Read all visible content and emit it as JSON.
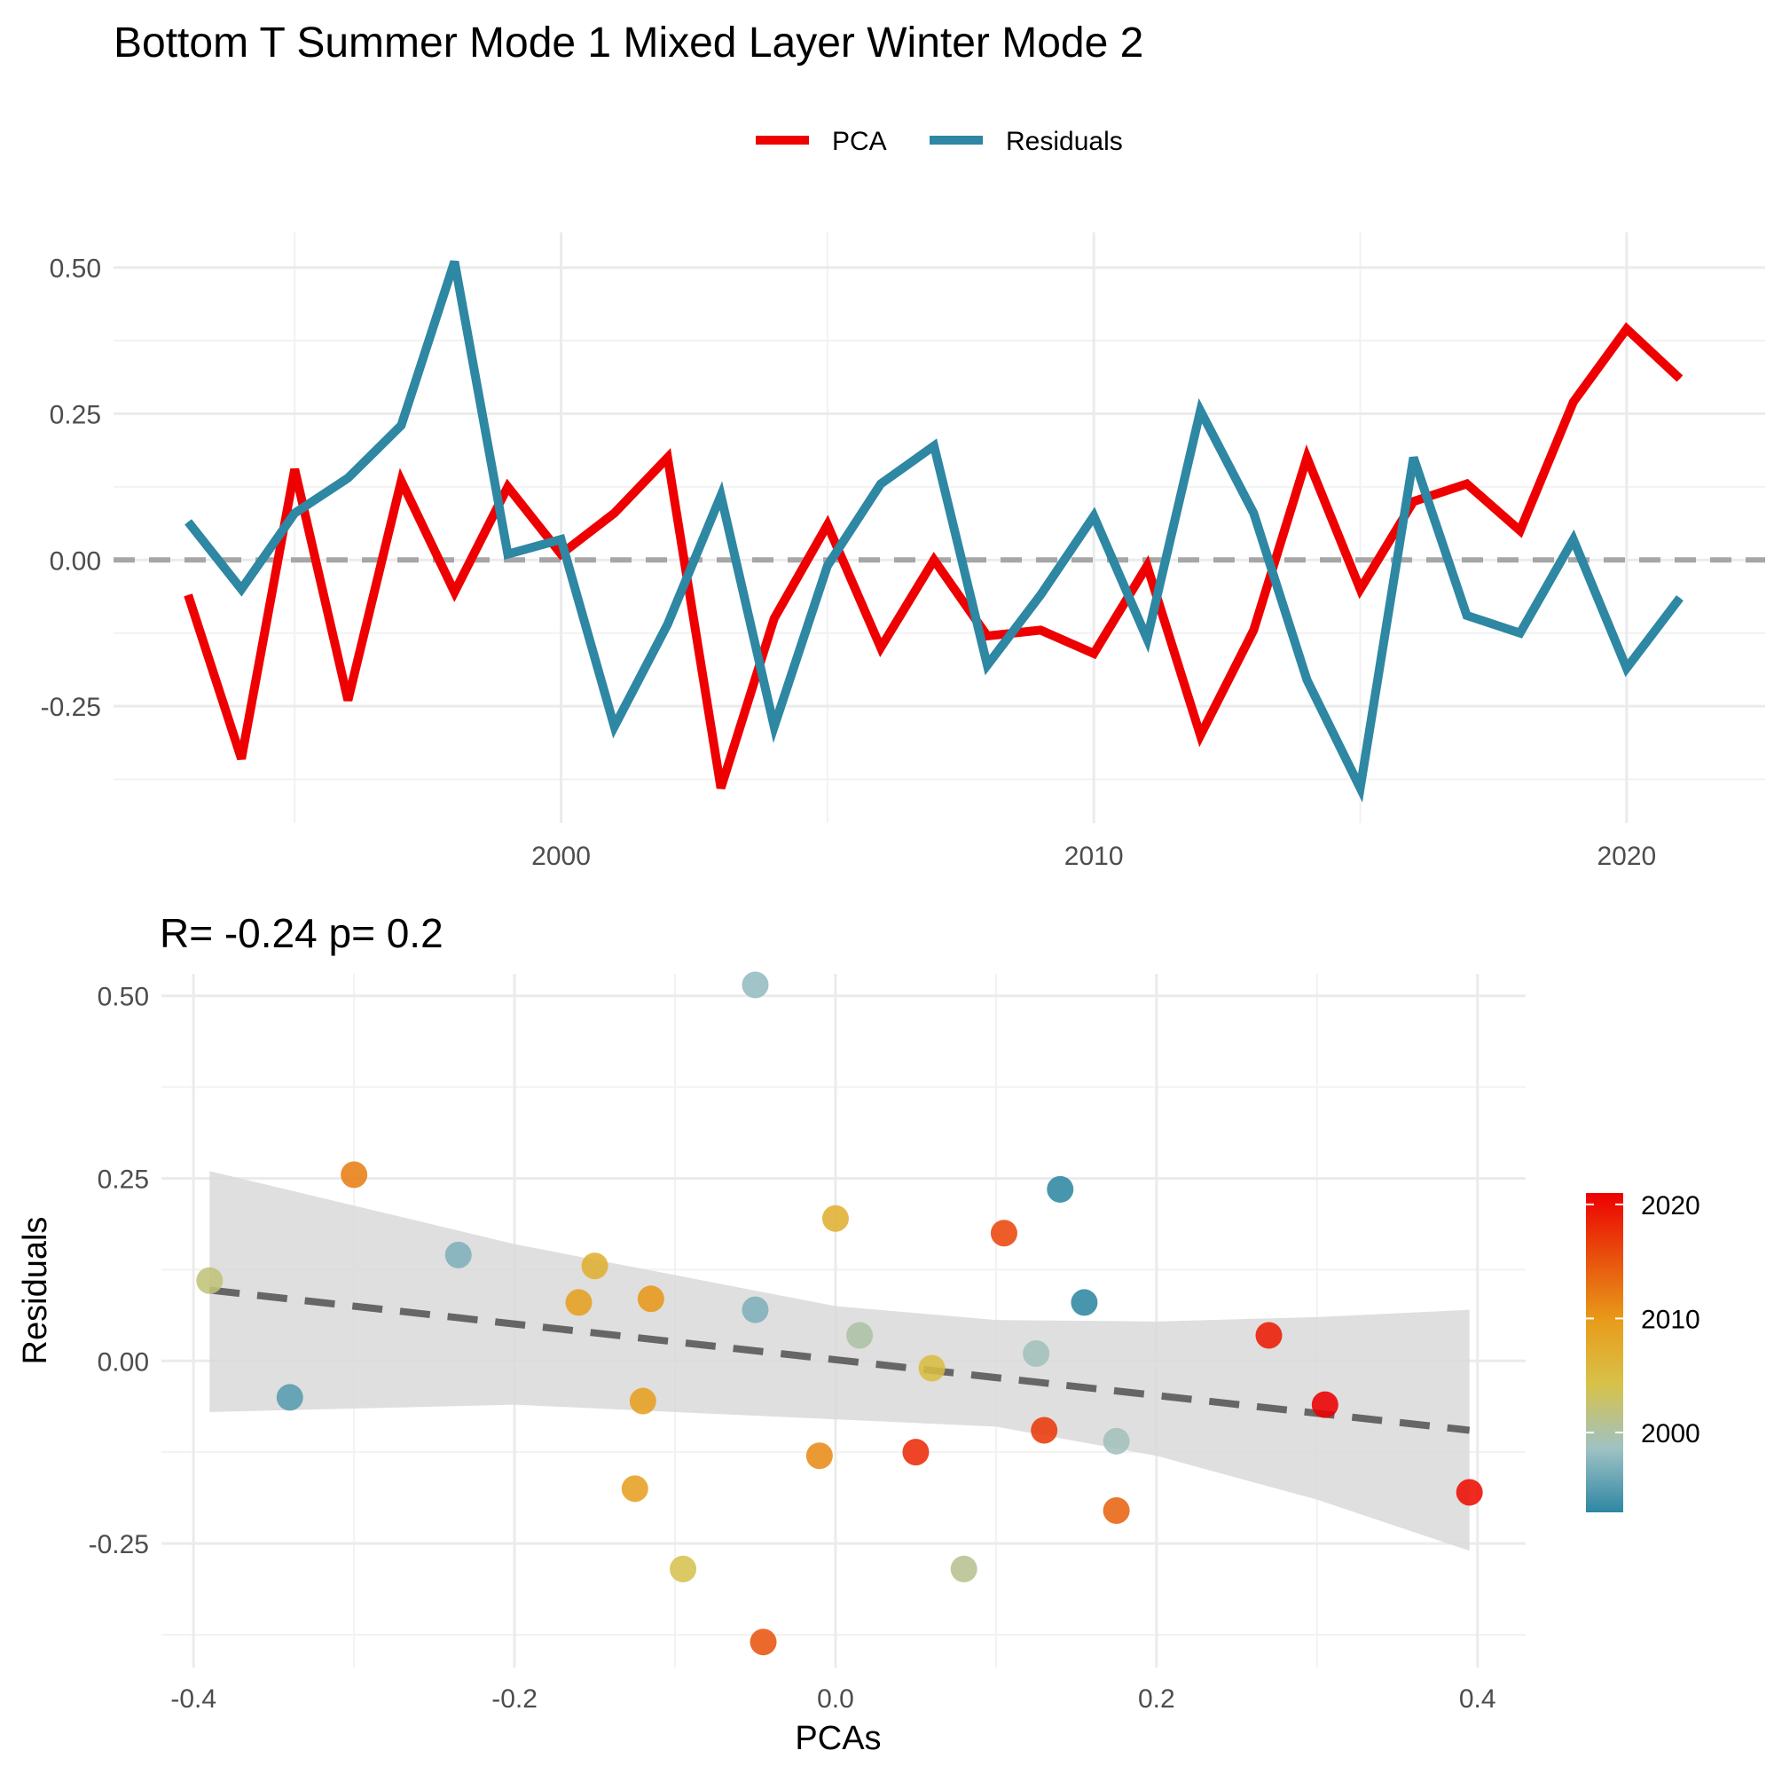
{
  "figure_title": "Bottom T Summer Mode 1 Mixed Layer Winter Mode 2",
  "colors": {
    "pca": "#ee0000",
    "residuals": "#2e87a3",
    "zero_line": "#a6a6a6",
    "fit_line": "#666666",
    "ribbon": "#d9d9d9",
    "gradient": [
      "#2e87a3",
      "#9fc2c4",
      "#d7c24a",
      "#e89c1a",
      "#e8500d",
      "#ee0000"
    ]
  },
  "chart_data": [
    {
      "type": "line",
      "title": "",
      "xlabel": "",
      "ylabel": "",
      "x": [
        1993,
        1994,
        1995,
        1996,
        1997,
        1998,
        1999,
        2000,
        2001,
        2002,
        2003,
        2004,
        2005,
        2006,
        2007,
        2008,
        2009,
        2010,
        2011,
        2012,
        2013,
        2014,
        2015,
        2016,
        2017,
        2018,
        2019,
        2020,
        2021
      ],
      "series": [
        {
          "name": "PCA",
          "values": [
            -0.06,
            -0.34,
            0.155,
            -0.24,
            0.135,
            -0.055,
            0.125,
            0.01,
            0.08,
            0.175,
            -0.39,
            -0.1,
            0.06,
            -0.15,
            0.0,
            -0.13,
            -0.12,
            -0.16,
            -0.01,
            -0.3,
            -0.12,
            0.175,
            -0.05,
            0.1,
            0.13,
            0.05,
            0.27,
            0.395,
            0.31
          ]
        },
        {
          "name": "Residuals",
          "values": [
            0.065,
            -0.05,
            0.08,
            0.14,
            0.23,
            0.51,
            0.01,
            0.035,
            -0.285,
            -0.11,
            0.11,
            -0.285,
            -0.01,
            0.13,
            0.195,
            -0.18,
            -0.06,
            0.075,
            -0.135,
            0.255,
            0.08,
            -0.205,
            -0.39,
            0.175,
            -0.095,
            -0.125,
            0.035,
            -0.185,
            -0.065
          ]
        }
      ],
      "xlim": [
        1991.6,
        2022.6
      ],
      "ylim": [
        -0.45,
        0.56
      ],
      "xticks": [
        "2000",
        "2010",
        "2020"
      ],
      "yticks": [
        "0.50",
        "0.25",
        "0.00",
        "-0.25"
      ],
      "reference_line": 0,
      "legend": {
        "position": "top",
        "entries": [
          "PCA",
          "Residuals"
        ]
      }
    },
    {
      "type": "scatter",
      "subtitle": "R= -0.24  p= 0.2",
      "xlabel": "PCAs",
      "ylabel": "Residuals",
      "points": [
        {
          "x": -0.39,
          "y": 0.11,
          "year": 2002
        },
        {
          "x": -0.34,
          "y": -0.05,
          "year": 1995
        },
        {
          "x": -0.3,
          "y": 0.255,
          "year": 2012
        },
        {
          "x": -0.235,
          "y": 0.145,
          "year": 1997
        },
        {
          "x": -0.15,
          "y": 0.13,
          "year": 2007
        },
        {
          "x": -0.16,
          "y": 0.08,
          "year": 2009
        },
        {
          "x": -0.115,
          "y": 0.085,
          "year": 2010
        },
        {
          "x": -0.12,
          "y": -0.055,
          "year": 2009
        },
        {
          "x": -0.125,
          "y": -0.175,
          "year": 2009
        },
        {
          "x": -0.095,
          "y": -0.285,
          "year": 2004
        },
        {
          "x": -0.05,
          "y": 0.515,
          "year": 1998
        },
        {
          "x": -0.05,
          "y": 0.07,
          "year": 1997
        },
        {
          "x": -0.045,
          "y": -0.385,
          "year": 2015
        },
        {
          "x": 0.0,
          "y": 0.195,
          "year": 2007
        },
        {
          "x": -0.01,
          "y": -0.13,
          "year": 2011
        },
        {
          "x": 0.015,
          "y": 0.035,
          "year": 2000
        },
        {
          "x": 0.05,
          "y": -0.125,
          "year": 2018
        },
        {
          "x": 0.06,
          "y": -0.01,
          "year": 2005
        },
        {
          "x": 0.08,
          "y": -0.285,
          "year": 2001
        },
        {
          "x": 0.105,
          "y": 0.175,
          "year": 2016
        },
        {
          "x": 0.125,
          "y": 0.01,
          "year": 1999
        },
        {
          "x": 0.13,
          "y": -0.095,
          "year": 2017
        },
        {
          "x": 0.14,
          "y": 0.235,
          "year": 1993
        },
        {
          "x": 0.155,
          "y": 0.08,
          "year": 1993
        },
        {
          "x": 0.175,
          "y": -0.11,
          "year": 1999
        },
        {
          "x": 0.175,
          "y": -0.205,
          "year": 2014
        },
        {
          "x": 0.27,
          "y": 0.035,
          "year": 2019
        },
        {
          "x": 0.305,
          "y": -0.06,
          "year": 2021
        },
        {
          "x": 0.395,
          "y": -0.18,
          "year": 2020
        }
      ],
      "fit": {
        "x": [
          -0.39,
          0.395
        ],
        "y": [
          0.097,
          -0.095
        ]
      },
      "ribbon": {
        "x": [
          -0.39,
          -0.2,
          0.0,
          0.1,
          0.2,
          0.3,
          0.395
        ],
        "upper": [
          0.26,
          0.16,
          0.075,
          0.056,
          0.054,
          0.06,
          0.07
        ],
        "lower": [
          -0.07,
          -0.06,
          -0.08,
          -0.09,
          -0.13,
          -0.19,
          -0.26
        ]
      },
      "xlim": [
        -0.42,
        0.43
      ],
      "ylim": [
        -0.42,
        0.53
      ],
      "xticks": [
        "-0.4",
        "-0.2",
        "0.0",
        "0.2",
        "0.4"
      ],
      "yticks": [
        "0.50",
        "0.25",
        "0.00",
        "-0.25"
      ],
      "colorbar": {
        "labels": [
          "2020",
          "2010",
          "2000"
        ],
        "range": [
          1993,
          2021
        ]
      }
    }
  ]
}
